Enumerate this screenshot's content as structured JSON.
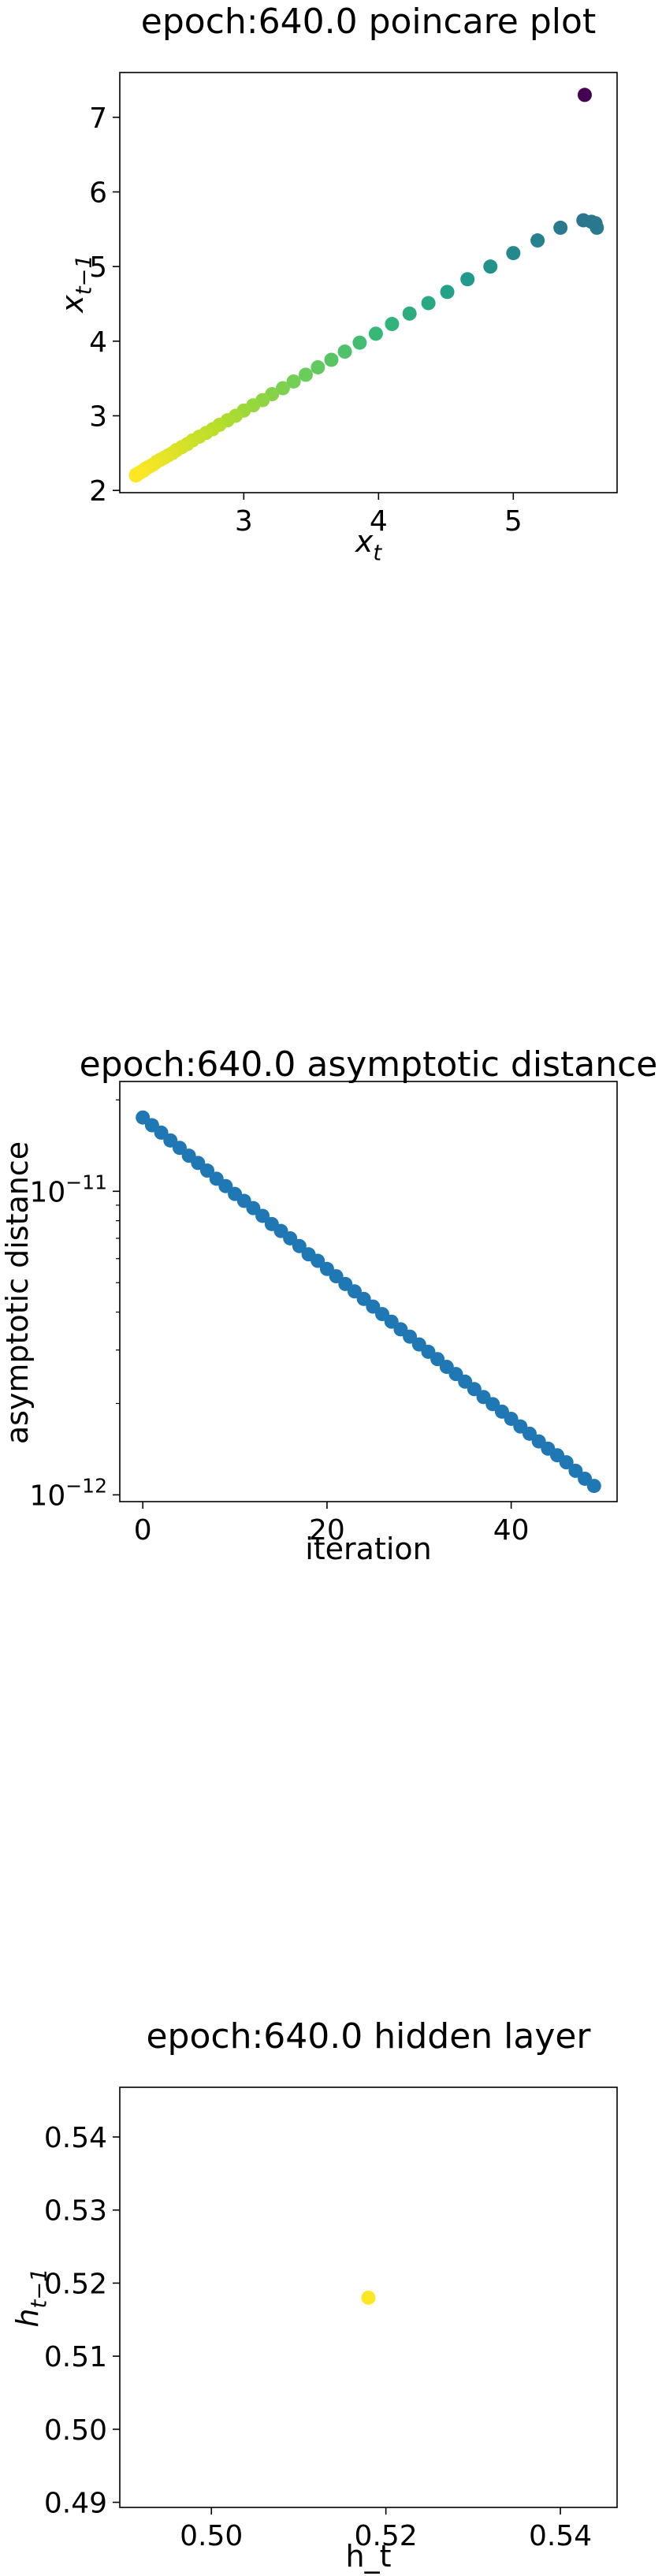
{
  "chart_data": [
    {
      "type": "scatter",
      "title": "epoch:640.0 poincare plot",
      "xlabel": "x_t",
      "ylabel": "x_{t-1}",
      "xlim": [
        2.08,
        5.77
      ],
      "ylim": [
        1.97,
        7.6
      ],
      "xticks": [
        3,
        4,
        5
      ],
      "yticks": [
        2,
        3,
        4,
        5,
        6,
        7
      ],
      "colormap": "viridis",
      "grid": false,
      "x": [
        5.62,
        5.52,
        5.35,
        5.18,
        5.0,
        4.83,
        4.66,
        4.51,
        4.37,
        4.23,
        4.1,
        3.98,
        3.86,
        3.75,
        3.65,
        3.55,
        3.46,
        3.37,
        3.29,
        3.21,
        3.14,
        3.07,
        3.0,
        2.94,
        2.88,
        2.82,
        2.77,
        2.72,
        2.67,
        2.62,
        2.58,
        2.54,
        2.5,
        2.47,
        2.44,
        2.41,
        2.38,
        2.35,
        2.33,
        2.31,
        2.29,
        2.27,
        2.26,
        2.25,
        2.24,
        2.23,
        2.22,
        2.21,
        2.2,
        2.2,
        5.53,
        5.58,
        5.61
      ],
      "y": [
        5.52,
        5.62,
        5.52,
        5.35,
        5.18,
        5.0,
        4.83,
        4.66,
        4.51,
        4.37,
        4.23,
        4.1,
        3.98,
        3.86,
        3.75,
        3.65,
        3.55,
        3.46,
        3.37,
        3.29,
        3.21,
        3.14,
        3.07,
        3.0,
        2.94,
        2.88,
        2.82,
        2.77,
        2.72,
        2.67,
        2.62,
        2.58,
        2.54,
        2.5,
        2.47,
        2.44,
        2.41,
        2.38,
        2.35,
        2.33,
        2.31,
        2.29,
        2.27,
        2.26,
        2.25,
        2.24,
        2.23,
        2.22,
        2.21,
        2.2,
        7.3,
        5.6,
        5.58
      ]
    },
    {
      "type": "scatter",
      "title": "epoch:640.0 asymptotic distance",
      "xlabel": "iteration",
      "ylabel": "asymptotic distance",
      "yscale": "log",
      "xlim": [
        -2.5,
        51.5
      ],
      "ylim": [
        9.5e-13,
        2.3e-11
      ],
      "xticks": [
        0,
        20,
        40
      ],
      "yticks": [
        1e-12,
        1e-11
      ],
      "ytick_labels": [
        {
          "base": "10",
          "exp": "−12"
        },
        {
          "base": "10",
          "exp": "−11"
        }
      ],
      "color": "#1f77b4",
      "grid": false,
      "x": [
        0,
        1,
        2,
        3,
        4,
        5,
        6,
        7,
        8,
        9,
        10,
        11,
        12,
        13,
        14,
        15,
        16,
        17,
        18,
        19,
        20,
        21,
        22,
        23,
        24,
        25,
        26,
        27,
        28,
        29,
        30,
        31,
        32,
        33,
        34,
        35,
        36,
        37,
        38,
        39,
        40,
        41,
        42,
        43,
        44,
        45,
        46,
        47,
        48,
        49
      ],
      "y": [
        1.75e-11,
        1.65e-11,
        1.56e-11,
        1.47e-11,
        1.39e-11,
        1.31e-11,
        1.24e-11,
        1.17e-11,
        1.1e-11,
        1.04e-11,
        9.8e-12,
        9.3e-12,
        8.8e-12,
        8.3e-12,
        7.8e-12,
        7.4e-12,
        7e-12,
        6.6e-12,
        6.2e-12,
        5.9e-12,
        5.55e-12,
        5.25e-12,
        4.95e-12,
        4.68e-12,
        4.42e-12,
        4.17e-12,
        3.94e-12,
        3.72e-12,
        3.51e-12,
        3.32e-12,
        3.13e-12,
        2.96e-12,
        2.8e-12,
        2.64e-12,
        2.5e-12,
        2.36e-12,
        2.23e-12,
        2.1e-12,
        1.99e-12,
        1.88e-12,
        1.78e-12,
        1.68e-12,
        1.59e-12,
        1.5e-12,
        1.42e-12,
        1.35e-12,
        1.28e-12,
        1.2e-12,
        1.13e-12,
        1.07e-12
      ]
    },
    {
      "type": "scatter",
      "title": "epoch:640.0 hidden layer",
      "xlabel": "h_t",
      "ylabel": "h_{t-1}",
      "xlim": [
        0.4895,
        0.5465
      ],
      "ylim": [
        0.4893,
        0.5468
      ],
      "xticks": [
        0.5,
        0.52,
        0.54
      ],
      "yticks": [
        0.49,
        0.5,
        0.51,
        0.52,
        0.53,
        0.54
      ],
      "xtick_labels": [
        "0.50",
        "0.52",
        "0.54"
      ],
      "ytick_labels": [
        "0.49",
        "0.50",
        "0.51",
        "0.52",
        "0.53",
        "0.54"
      ],
      "color": "#fde725",
      "grid": false,
      "x": [
        0.518
      ],
      "y": [
        0.518
      ]
    }
  ]
}
